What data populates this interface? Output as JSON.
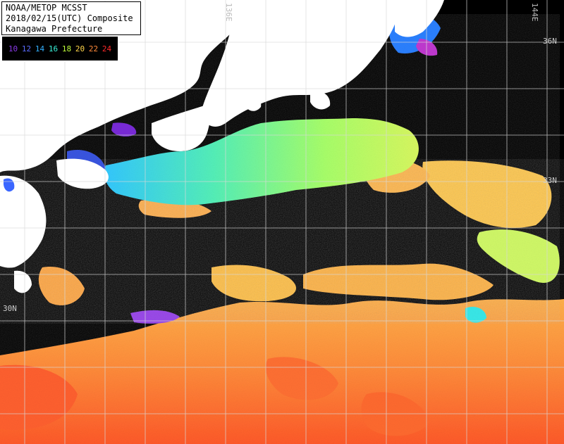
{
  "header": {
    "line1": "NOAA/METOP MCSST",
    "line2": "2018/02/15(UTC) Composite",
    "line3": "Kanagawa Prefecture"
  },
  "legend": {
    "items": [
      {
        "label": "10",
        "color": "#7a2cd8"
      },
      {
        "label": "12",
        "color": "#5a55f0"
      },
      {
        "label": "14",
        "color": "#33a8ff"
      },
      {
        "label": "16",
        "color": "#39f2d9"
      },
      {
        "label": "18",
        "color": "#bfff3a"
      },
      {
        "label": "20",
        "color": "#ffd54a"
      },
      {
        "label": "22",
        "color": "#ff8a3a"
      },
      {
        "label": "24",
        "color": "#ff2a2a"
      }
    ]
  },
  "coords": {
    "lon_136": "136E",
    "lon_144": "144E",
    "lat_36": "36N",
    "lat_33": "33N",
    "lat_30": "30N"
  }
}
